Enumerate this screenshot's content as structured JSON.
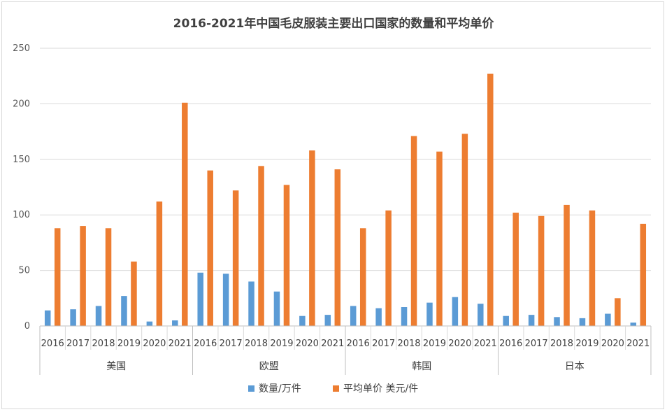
{
  "chart_data": {
    "type": "bar",
    "title": "2016-2021年中国毛皮服装主要出口国家的数量和平均单价",
    "groups": [
      {
        "name": "美国",
        "years": [
          "2016",
          "2017",
          "2018",
          "2019",
          "2020",
          "2021"
        ]
      },
      {
        "name": "欧盟",
        "years": [
          "2016",
          "2017",
          "2018",
          "2019",
          "2020",
          "2021"
        ]
      },
      {
        "name": "韩国",
        "years": [
          "2016",
          "2017",
          "2018",
          "2019",
          "2020",
          "2021"
        ]
      },
      {
        "name": "日本",
        "years": [
          "2016",
          "2017",
          "2018",
          "2019",
          "2020",
          "2021"
        ]
      }
    ],
    "series": [
      {
        "name": "数量/万件",
        "color": "#5b9bd5",
        "values": [
          14,
          15,
          18,
          27,
          4,
          5,
          48,
          47,
          40,
          31,
          9,
          10,
          18,
          16,
          17,
          21,
          26,
          20,
          9,
          10,
          8,
          7,
          11,
          3
        ]
      },
      {
        "name": "平均单价 美元/件",
        "color": "#ed7d31",
        "values": [
          88,
          90,
          88,
          58,
          112,
          201,
          140,
          122,
          144,
          127,
          158,
          141,
          88,
          104,
          171,
          157,
          173,
          227,
          102,
          99,
          109,
          104,
          25,
          92
        ]
      }
    ],
    "ylim": [
      0,
      250
    ],
    "yticks": [
      "0",
      "50",
      "100",
      "150",
      "200",
      "250"
    ],
    "grid": true,
    "legend_position": "bottom"
  }
}
